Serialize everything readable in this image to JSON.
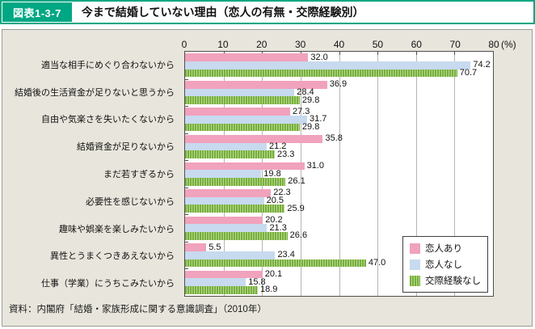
{
  "header": {
    "figure_label": "図表1-3-7",
    "title": "今まで結婚していない理由（恋人の有無・交際経験別）"
  },
  "chart_data": {
    "type": "bar",
    "orientation": "horizontal",
    "title": "今まで結婚していない理由（恋人の有無・交際経験別）",
    "categories": [
      "適当な相手にめぐり合わないから",
      "結婚後の生活資金が足りないと思うから",
      "自由や気楽さを失いたくないから",
      "結婚資金が足りないから",
      "まだ若すぎるから",
      "必要性を感じないから",
      "趣味や娯楽を楽しみたいから",
      "異性とうまくつきあえないから",
      "仕事（学業）にうちこみたいから"
    ],
    "series": [
      {
        "name": "恋人あり",
        "color": "#F1A2BC",
        "pattern": "solid",
        "values": [
          32.0,
          36.9,
          27.3,
          35.8,
          31.0,
          22.3,
          20.2,
          5.5,
          20.1
        ]
      },
      {
        "name": "恋人なし",
        "color": "#C7DAEF",
        "pattern": "solid",
        "values": [
          74.2,
          28.4,
          31.7,
          21.2,
          19.8,
          20.5,
          21.3,
          23.4,
          15.8
        ]
      },
      {
        "name": "交際経験なし",
        "color": "#76AF3C",
        "pattern": "vertical-stripes",
        "values": [
          70.7,
          29.8,
          29.8,
          23.3,
          26.1,
          25.9,
          26.6,
          47.0,
          18.9
        ]
      }
    ],
    "xlim": [
      0,
      80
    ],
    "x_ticks": [
      0,
      10,
      20,
      30,
      40,
      50,
      60,
      70,
      80
    ],
    "x_unit": "(%)",
    "value_labels": "one-decimal-at-bar-end",
    "grid": true,
    "legend_position": "inside-bottom-right"
  },
  "footer": {
    "source": "資料：内閣府「結婚・家族形成に関する意識調査」（2010年）"
  },
  "colors": {
    "accent_teal": "#00A783",
    "panel_bg": "#E8E5DC",
    "bar_pink": "#F1A2BC",
    "bar_blue": "#C7DAEF",
    "bar_green_dark": "#76AF3C",
    "bar_green_light": "#BAD891"
  }
}
